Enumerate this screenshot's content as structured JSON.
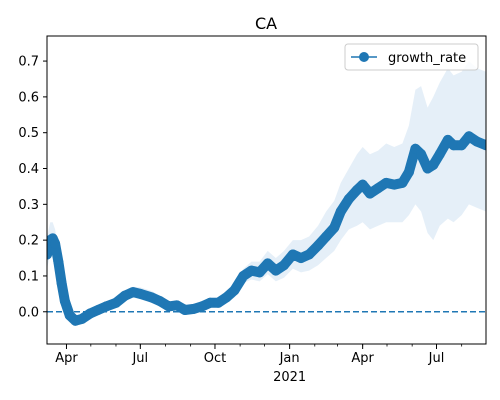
{
  "chart_data": {
    "type": "line",
    "title": "CA",
    "xlabel": "",
    "ylabel": "",
    "x_range": [
      "2020-03-08",
      "2021-08-31"
    ],
    "ylim": [
      -0.09,
      0.77
    ],
    "yticks": [
      0.0,
      0.1,
      0.2,
      0.3,
      0.4,
      0.5,
      0.6,
      0.7
    ],
    "ytick_labels": [
      "0.0",
      "0.1",
      "0.2",
      "0.3",
      "0.4",
      "0.5",
      "0.6",
      "0.7"
    ],
    "xticks": [
      {
        "date": "2020-04-01",
        "label": "Apr",
        "sublabel": ""
      },
      {
        "date": "2020-07-01",
        "label": "Jul",
        "sublabel": ""
      },
      {
        "date": "2020-10-01",
        "label": "Oct",
        "sublabel": ""
      },
      {
        "date": "2021-01-01",
        "label": "Jan",
        "sublabel": "2021"
      },
      {
        "date": "2021-04-01",
        "label": "Apr",
        "sublabel": ""
      },
      {
        "date": "2021-07-01",
        "label": "Jul",
        "sublabel": ""
      }
    ],
    "reference_line": {
      "y": 0.0,
      "style": "dashed",
      "color": "#1f77b4"
    },
    "legend": {
      "position": "top-right",
      "entries": [
        "growth_rate"
      ]
    },
    "grid": false,
    "series": [
      {
        "name": "growth_rate",
        "color": "#1f77b4",
        "band_color": "#dce9f5",
        "points": [
          {
            "x": "2020-03-08",
            "y": 0.16,
            "lo": 0.12,
            "hi": 0.21
          },
          {
            "x": "2020-03-12",
            "y": 0.2,
            "lo": 0.16,
            "hi": 0.25
          },
          {
            "x": "2020-03-15",
            "y": 0.205,
            "lo": 0.17,
            "hi": 0.25
          },
          {
            "x": "2020-03-18",
            "y": 0.19,
            "lo": 0.155,
            "hi": 0.23
          },
          {
            "x": "2020-03-22",
            "y": 0.14,
            "lo": 0.11,
            "hi": 0.175
          },
          {
            "x": "2020-03-26",
            "y": 0.08,
            "lo": 0.06,
            "hi": 0.105
          },
          {
            "x": "2020-03-30",
            "y": 0.03,
            "lo": 0.015,
            "hi": 0.05
          },
          {
            "x": "2020-04-05",
            "y": -0.01,
            "lo": -0.02,
            "hi": 0.005
          },
          {
            "x": "2020-04-12",
            "y": -0.025,
            "lo": -0.035,
            "hi": -0.015
          },
          {
            "x": "2020-04-20",
            "y": -0.02,
            "lo": -0.03,
            "hi": -0.01
          },
          {
            "x": "2020-04-30",
            "y": -0.005,
            "lo": -0.015,
            "hi": 0.005
          },
          {
            "x": "2020-05-10",
            "y": 0.005,
            "lo": -0.005,
            "hi": 0.015
          },
          {
            "x": "2020-05-20",
            "y": 0.015,
            "lo": 0.005,
            "hi": 0.025
          },
          {
            "x": "2020-06-01",
            "y": 0.025,
            "lo": 0.01,
            "hi": 0.04
          },
          {
            "x": "2020-06-12",
            "y": 0.045,
            "lo": 0.03,
            "hi": 0.06
          },
          {
            "x": "2020-06-22",
            "y": 0.055,
            "lo": 0.04,
            "hi": 0.07
          },
          {
            "x": "2020-07-01",
            "y": 0.05,
            "lo": 0.035,
            "hi": 0.068
          },
          {
            "x": "2020-07-15",
            "y": 0.04,
            "lo": 0.025,
            "hi": 0.058
          },
          {
            "x": "2020-07-25",
            "y": 0.03,
            "lo": 0.018,
            "hi": 0.045
          },
          {
            "x": "2020-08-05",
            "y": 0.015,
            "lo": 0.005,
            "hi": 0.028
          },
          {
            "x": "2020-08-15",
            "y": 0.018,
            "lo": 0.008,
            "hi": 0.03
          },
          {
            "x": "2020-08-25",
            "y": 0.005,
            "lo": -0.005,
            "hi": 0.016
          },
          {
            "x": "2020-09-05",
            "y": 0.008,
            "lo": -0.002,
            "hi": 0.02
          },
          {
            "x": "2020-09-15",
            "y": 0.015,
            "lo": 0.005,
            "hi": 0.028
          },
          {
            "x": "2020-09-25",
            "y": 0.025,
            "lo": 0.012,
            "hi": 0.04
          },
          {
            "x": "2020-10-05",
            "y": 0.025,
            "lo": 0.012,
            "hi": 0.04
          },
          {
            "x": "2020-10-15",
            "y": 0.04,
            "lo": 0.025,
            "hi": 0.058
          },
          {
            "x": "2020-10-25",
            "y": 0.06,
            "lo": 0.04,
            "hi": 0.08
          },
          {
            "x": "2020-11-05",
            "y": 0.1,
            "lo": 0.08,
            "hi": 0.12
          },
          {
            "x": "2020-11-15",
            "y": 0.115,
            "lo": 0.09,
            "hi": 0.14
          },
          {
            "x": "2020-11-25",
            "y": 0.11,
            "lo": 0.085,
            "hi": 0.14
          },
          {
            "x": "2020-12-05",
            "y": 0.135,
            "lo": 0.105,
            "hi": 0.17
          },
          {
            "x": "2020-12-15",
            "y": 0.115,
            "lo": 0.085,
            "hi": 0.15
          },
          {
            "x": "2020-12-25",
            "y": 0.13,
            "lo": 0.095,
            "hi": 0.17
          },
          {
            "x": "2021-01-05",
            "y": 0.16,
            "lo": 0.12,
            "hi": 0.2
          },
          {
            "x": "2021-01-15",
            "y": 0.15,
            "lo": 0.11,
            "hi": 0.2
          },
          {
            "x": "2021-01-25",
            "y": 0.16,
            "lo": 0.115,
            "hi": 0.21
          },
          {
            "x": "2021-02-05",
            "y": 0.185,
            "lo": 0.13,
            "hi": 0.24
          },
          {
            "x": "2021-02-15",
            "y": 0.21,
            "lo": 0.15,
            "hi": 0.28
          },
          {
            "x": "2021-02-25",
            "y": 0.235,
            "lo": 0.17,
            "hi": 0.31
          },
          {
            "x": "2021-03-05",
            "y": 0.28,
            "lo": 0.2,
            "hi": 0.36
          },
          {
            "x": "2021-03-15",
            "y": 0.315,
            "lo": 0.23,
            "hi": 0.4
          },
          {
            "x": "2021-03-25",
            "y": 0.34,
            "lo": 0.24,
            "hi": 0.44
          },
          {
            "x": "2021-04-01",
            "y": 0.355,
            "lo": 0.25,
            "hi": 0.46
          },
          {
            "x": "2021-04-10",
            "y": 0.33,
            "lo": 0.23,
            "hi": 0.44
          },
          {
            "x": "2021-04-20",
            "y": 0.345,
            "lo": 0.24,
            "hi": 0.45
          },
          {
            "x": "2021-04-30",
            "y": 0.36,
            "lo": 0.25,
            "hi": 0.47
          },
          {
            "x": "2021-05-10",
            "y": 0.355,
            "lo": 0.25,
            "hi": 0.46
          },
          {
            "x": "2021-05-20",
            "y": 0.36,
            "lo": 0.25,
            "hi": 0.47
          },
          {
            "x": "2021-05-28",
            "y": 0.39,
            "lo": 0.27,
            "hi": 0.52
          },
          {
            "x": "2021-06-05",
            "y": 0.455,
            "lo": 0.3,
            "hi": 0.62
          },
          {
            "x": "2021-06-12",
            "y": 0.44,
            "lo": 0.28,
            "hi": 0.63
          },
          {
            "x": "2021-06-20",
            "y": 0.4,
            "lo": 0.22,
            "hi": 0.57
          },
          {
            "x": "2021-06-27",
            "y": 0.41,
            "lo": 0.2,
            "hi": 0.6
          },
          {
            "x": "2021-07-05",
            "y": 0.44,
            "lo": 0.24,
            "hi": 0.64
          },
          {
            "x": "2021-07-15",
            "y": 0.48,
            "lo": 0.26,
            "hi": 0.68
          },
          {
            "x": "2021-07-22",
            "y": 0.465,
            "lo": 0.25,
            "hi": 0.66
          },
          {
            "x": "2021-08-01",
            "y": 0.465,
            "lo": 0.27,
            "hi": 0.67
          },
          {
            "x": "2021-08-10",
            "y": 0.49,
            "lo": 0.3,
            "hi": 0.7
          },
          {
            "x": "2021-08-20",
            "y": 0.475,
            "lo": 0.29,
            "hi": 0.68
          },
          {
            "x": "2021-08-31",
            "y": 0.465,
            "lo": 0.28,
            "hi": 0.67
          }
        ]
      }
    ]
  }
}
